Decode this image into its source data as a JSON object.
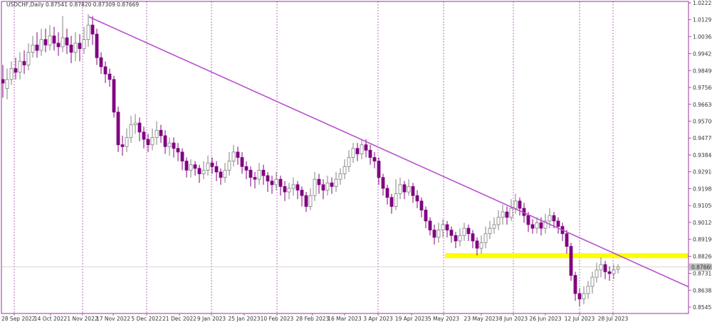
{
  "chart_data": {
    "type": "candlestick",
    "title": "USDCHF,Daily  0.87541 0.87820 0.87309 0.87669",
    "symbol": "USDCHF",
    "timeframe": "Daily",
    "ohlc_last": {
      "open": 0.87541,
      "high": 0.8782,
      "low": 0.87309,
      "close": 0.87669
    },
    "current_price_label": "0.87669",
    "ylim": [
      0.8508,
      1.0246
    ],
    "y_ticks": [
      "1.02223",
      "1.01295",
      "1.00365",
      "0.99425",
      "0.98490",
      "0.97560",
      "0.96630",
      "0.95700",
      "0.94770",
      "0.93840",
      "0.92910",
      "0.91980",
      "0.91050",
      "0.90120",
      "0.89190",
      "0.88260",
      "0.87315",
      "0.86385",
      "0.85455"
    ],
    "x_ticks": [
      "28 Sep 2022",
      "14 Oct 2022",
      "1 Nov 2022",
      "17 Nov 2022",
      "5 Dec 2022",
      "21 Dec 2022",
      "9 Jan 2023",
      "25 Jan 2023",
      "10 Feb 2023",
      "28 Feb 2023",
      "16 Mar 2023",
      "3 Apr 2023",
      "19 Apr 2023",
      "5 May 2023",
      "23 May 2023",
      "8 Jun 2023",
      "26 Jun 2023",
      "12 Jul 2023",
      "28 Jul 2023"
    ],
    "vertical_separators": [
      "28 Sep 2022",
      "1 Nov 2022",
      "5 Dec 2022",
      "9 Jan 2023",
      "10 Feb 2023",
      "3 Apr 2023",
      "5 May 2023",
      "8 Jun 2023",
      "12 Jul 2023",
      "28 Jul 2023"
    ],
    "trendline": {
      "from": {
        "date": "1 Nov 2022",
        "price": 1.0145
      },
      "to": {
        "date": "28 Jul 2023",
        "price": 0.8825
      },
      "color": "#b94fcf"
    },
    "support_zone": {
      "from_date": "5 May 2023",
      "low": 0.8815,
      "high": 0.8843,
      "color": "#ffff00"
    },
    "colors": {
      "bull": "#808080",
      "bear": "#800080",
      "axis": "#9b30a0",
      "background": "#ffffff"
    },
    "series": [
      {
        "name": "USDCHF",
        "points": [
          [
            0.98,
            0.978,
            0.988,
            0.97
          ],
          [
            0.975,
            0.98,
            0.986,
            0.969
          ],
          [
            0.98,
            0.986,
            0.99,
            0.977
          ],
          [
            0.986,
            0.984,
            0.992,
            0.98
          ],
          [
            0.984,
            0.99,
            0.995,
            0.98
          ],
          [
            0.99,
            0.988,
            0.996,
            0.983
          ],
          [
            0.988,
            0.995,
            1,
            0.985
          ],
          [
            0.995,
            0.999,
            1.004,
            0.992
          ],
          [
            0.999,
            0.996,
            1.006,
            0.992
          ],
          [
            0.996,
            1.002,
            1.008,
            0.993
          ],
          [
            1.002,
            0.999,
            1.008,
            0.995
          ],
          [
            0.999,
            1.004,
            1.01,
            0.996
          ],
          [
            1.004,
            1,
            1.009,
            0.996
          ],
          [
            1,
            0.998,
            1.006,
            0.993
          ],
          [
            0.998,
            1.003,
            1.015,
            0.995
          ],
          [
            1.003,
            0.999,
            1.008,
            0.994
          ],
          [
            0.999,
            0.995,
            1.004,
            0.989
          ],
          [
            0.995,
            1,
            1.006,
            0.99
          ],
          [
            1,
            0.997,
            1.005,
            0.99
          ],
          [
            0.997,
            1.002,
            1.009,
            0.994
          ],
          [
            1.002,
            1.01,
            1.016,
            0.998
          ],
          [
            1.01,
            1.005,
            1.015,
            0.999
          ],
          [
            1.005,
            0.992,
            1.008,
            0.988
          ],
          [
            0.992,
            0.987,
            0.995,
            0.983
          ],
          [
            0.987,
            0.983,
            0.99,
            0.978
          ],
          [
            0.983,
            0.98,
            0.986,
            0.976
          ],
          [
            0.98,
            0.962,
            0.982,
            0.959
          ],
          [
            0.962,
            0.944,
            0.965,
            0.94
          ],
          [
            0.944,
            0.943,
            0.949,
            0.938
          ],
          [
            0.943,
            0.948,
            0.953,
            0.94
          ],
          [
            0.948,
            0.955,
            0.96,
            0.945
          ],
          [
            0.955,
            0.956,
            0.961,
            0.95
          ],
          [
            0.956,
            0.951,
            0.959,
            0.946
          ],
          [
            0.951,
            0.947,
            0.954,
            0.942
          ],
          [
            0.947,
            0.944,
            0.95,
            0.94
          ],
          [
            0.944,
            0.948,
            0.953,
            0.941
          ],
          [
            0.948,
            0.952,
            0.957,
            0.944
          ],
          [
            0.952,
            0.949,
            0.955,
            0.945
          ],
          [
            0.949,
            0.943,
            0.952,
            0.939
          ],
          [
            0.943,
            0.945,
            0.948,
            0.938
          ],
          [
            0.945,
            0.942,
            0.948,
            0.937
          ],
          [
            0.942,
            0.94,
            0.945,
            0.935
          ],
          [
            0.94,
            0.935,
            0.942,
            0.93
          ],
          [
            0.935,
            0.93,
            0.937,
            0.926
          ],
          [
            0.93,
            0.933,
            0.936,
            0.926
          ],
          [
            0.933,
            0.931,
            0.935,
            0.927
          ],
          [
            0.931,
            0.928,
            0.933,
            0.923
          ],
          [
            0.928,
            0.93,
            0.935,
            0.925
          ],
          [
            0.93,
            0.934,
            0.938,
            0.927
          ],
          [
            0.934,
            0.932,
            0.937,
            0.928
          ],
          [
            0.932,
            0.929,
            0.935,
            0.924
          ],
          [
            0.929,
            0.926,
            0.931,
            0.922
          ],
          [
            0.926,
            0.93,
            0.934,
            0.923
          ],
          [
            0.93,
            0.935,
            0.94,
            0.927
          ],
          [
            0.935,
            0.94,
            0.944,
            0.932
          ],
          [
            0.94,
            0.937,
            0.943,
            0.933
          ],
          [
            0.937,
            0.932,
            0.94,
            0.928
          ],
          [
            0.932,
            0.93,
            0.935,
            0.925
          ],
          [
            0.93,
            0.926,
            0.932,
            0.921
          ],
          [
            0.926,
            0.925,
            0.929,
            0.92
          ],
          [
            0.925,
            0.93,
            0.934,
            0.922
          ],
          [
            0.93,
            0.927,
            0.933,
            0.922
          ],
          [
            0.927,
            0.924,
            0.929,
            0.918
          ],
          [
            0.924,
            0.922,
            0.927,
            0.917
          ],
          [
            0.922,
            0.925,
            0.929,
            0.919
          ],
          [
            0.925,
            0.921,
            0.927,
            0.916
          ],
          [
            0.921,
            0.918,
            0.924,
            0.913
          ],
          [
            0.918,
            0.92,
            0.923,
            0.914
          ],
          [
            0.92,
            0.922,
            0.926,
            0.916
          ],
          [
            0.922,
            0.919,
            0.924,
            0.914
          ],
          [
            0.919,
            0.916,
            0.921,
            0.91
          ],
          [
            0.916,
            0.91,
            0.918,
            0.907
          ],
          [
            0.91,
            0.916,
            0.92,
            0.908
          ],
          [
            0.916,
            0.925,
            0.929,
            0.913
          ],
          [
            0.925,
            0.922,
            0.928,
            0.917
          ],
          [
            0.922,
            0.919,
            0.925,
            0.914
          ],
          [
            0.919,
            0.923,
            0.927,
            0.916
          ],
          [
            0.923,
            0.921,
            0.926,
            0.917
          ],
          [
            0.921,
            0.925,
            0.929,
            0.918
          ],
          [
            0.925,
            0.928,
            0.931,
            0.922
          ],
          [
            0.928,
            0.932,
            0.936,
            0.925
          ],
          [
            0.932,
            0.937,
            0.941,
            0.929
          ],
          [
            0.937,
            0.942,
            0.945,
            0.934
          ],
          [
            0.942,
            0.939,
            0.945,
            0.935
          ],
          [
            0.939,
            0.944,
            0.947,
            0.936
          ],
          [
            0.944,
            0.941,
            0.947,
            0.937
          ],
          [
            0.941,
            0.937,
            0.944,
            0.933
          ],
          [
            0.937,
            0.935,
            0.94,
            0.931
          ],
          [
            0.935,
            0.926,
            0.937,
            0.922
          ],
          [
            0.926,
            0.92,
            0.928,
            0.916
          ],
          [
            0.92,
            0.915,
            0.922,
            0.911
          ],
          [
            0.915,
            0.91,
            0.917,
            0.906
          ],
          [
            0.91,
            0.917,
            0.925,
            0.908
          ],
          [
            0.917,
            0.922,
            0.926,
            0.914
          ],
          [
            0.922,
            0.918,
            0.924,
            0.914
          ],
          [
            0.918,
            0.921,
            0.925,
            0.916
          ],
          [
            0.921,
            0.916,
            0.923,
            0.912
          ],
          [
            0.916,
            0.913,
            0.919,
            0.909
          ],
          [
            0.913,
            0.908,
            0.915,
            0.904
          ],
          [
            0.908,
            0.902,
            0.91,
            0.898
          ],
          [
            0.902,
            0.897,
            0.904,
            0.894
          ],
          [
            0.897,
            0.893,
            0.9,
            0.889
          ],
          [
            0.893,
            0.897,
            0.901,
            0.89
          ],
          [
            0.897,
            0.9,
            0.903,
            0.893
          ],
          [
            0.9,
            0.897,
            0.902,
            0.893
          ],
          [
            0.897,
            0.894,
            0.899,
            0.89
          ],
          [
            0.894,
            0.891,
            0.896,
            0.887
          ],
          [
            0.891,
            0.894,
            0.898,
            0.888
          ],
          [
            0.894,
            0.898,
            0.901,
            0.891
          ],
          [
            0.898,
            0.895,
            0.9,
            0.891
          ],
          [
            0.895,
            0.891,
            0.897,
            0.887
          ],
          [
            0.891,
            0.887,
            0.893,
            0.883
          ],
          [
            0.887,
            0.89,
            0.894,
            0.884
          ],
          [
            0.89,
            0.895,
            0.899,
            0.887
          ],
          [
            0.895,
            0.898,
            0.902,
            0.892
          ],
          [
            0.898,
            0.9,
            0.904,
            0.895
          ],
          [
            0.9,
            0.904,
            0.908,
            0.897
          ],
          [
            0.904,
            0.907,
            0.911,
            0.9
          ],
          [
            0.907,
            0.904,
            0.91,
            0.9
          ],
          [
            0.904,
            0.909,
            0.914,
            0.902
          ],
          [
            0.909,
            0.913,
            0.917,
            0.906
          ],
          [
            0.913,
            0.909,
            0.915,
            0.905
          ],
          [
            0.909,
            0.905,
            0.912,
            0.901
          ],
          [
            0.905,
            0.9,
            0.907,
            0.896
          ],
          [
            0.9,
            0.898,
            0.903,
            0.895
          ],
          [
            0.898,
            0.901,
            0.904,
            0.895
          ],
          [
            0.901,
            0.898,
            0.904,
            0.894
          ],
          [
            0.898,
            0.902,
            0.906,
            0.895
          ],
          [
            0.902,
            0.905,
            0.909,
            0.898
          ],
          [
            0.905,
            0.902,
            0.907,
            0.898
          ],
          [
            0.902,
            0.899,
            0.904,
            0.895
          ],
          [
            0.899,
            0.895,
            0.901,
            0.891
          ],
          [
            0.895,
            0.888,
            0.897,
            0.884
          ],
          [
            0.888,
            0.872,
            0.89,
            0.869
          ],
          [
            0.872,
            0.862,
            0.874,
            0.858
          ],
          [
            0.862,
            0.859,
            0.865,
            0.855
          ],
          [
            0.859,
            0.862,
            0.866,
            0.856
          ],
          [
            0.862,
            0.866,
            0.869,
            0.859
          ],
          [
            0.866,
            0.871,
            0.874,
            0.862
          ],
          [
            0.871,
            0.875,
            0.879,
            0.868
          ],
          [
            0.875,
            0.878,
            0.882,
            0.871
          ],
          [
            0.878,
            0.874,
            0.88,
            0.87
          ],
          [
            0.874,
            0.873,
            0.877,
            0.869
          ],
          [
            0.873,
            0.875,
            0.878,
            0.87
          ],
          [
            0.8754,
            0.8767,
            0.8782,
            0.8731
          ]
        ]
      }
    ]
  }
}
